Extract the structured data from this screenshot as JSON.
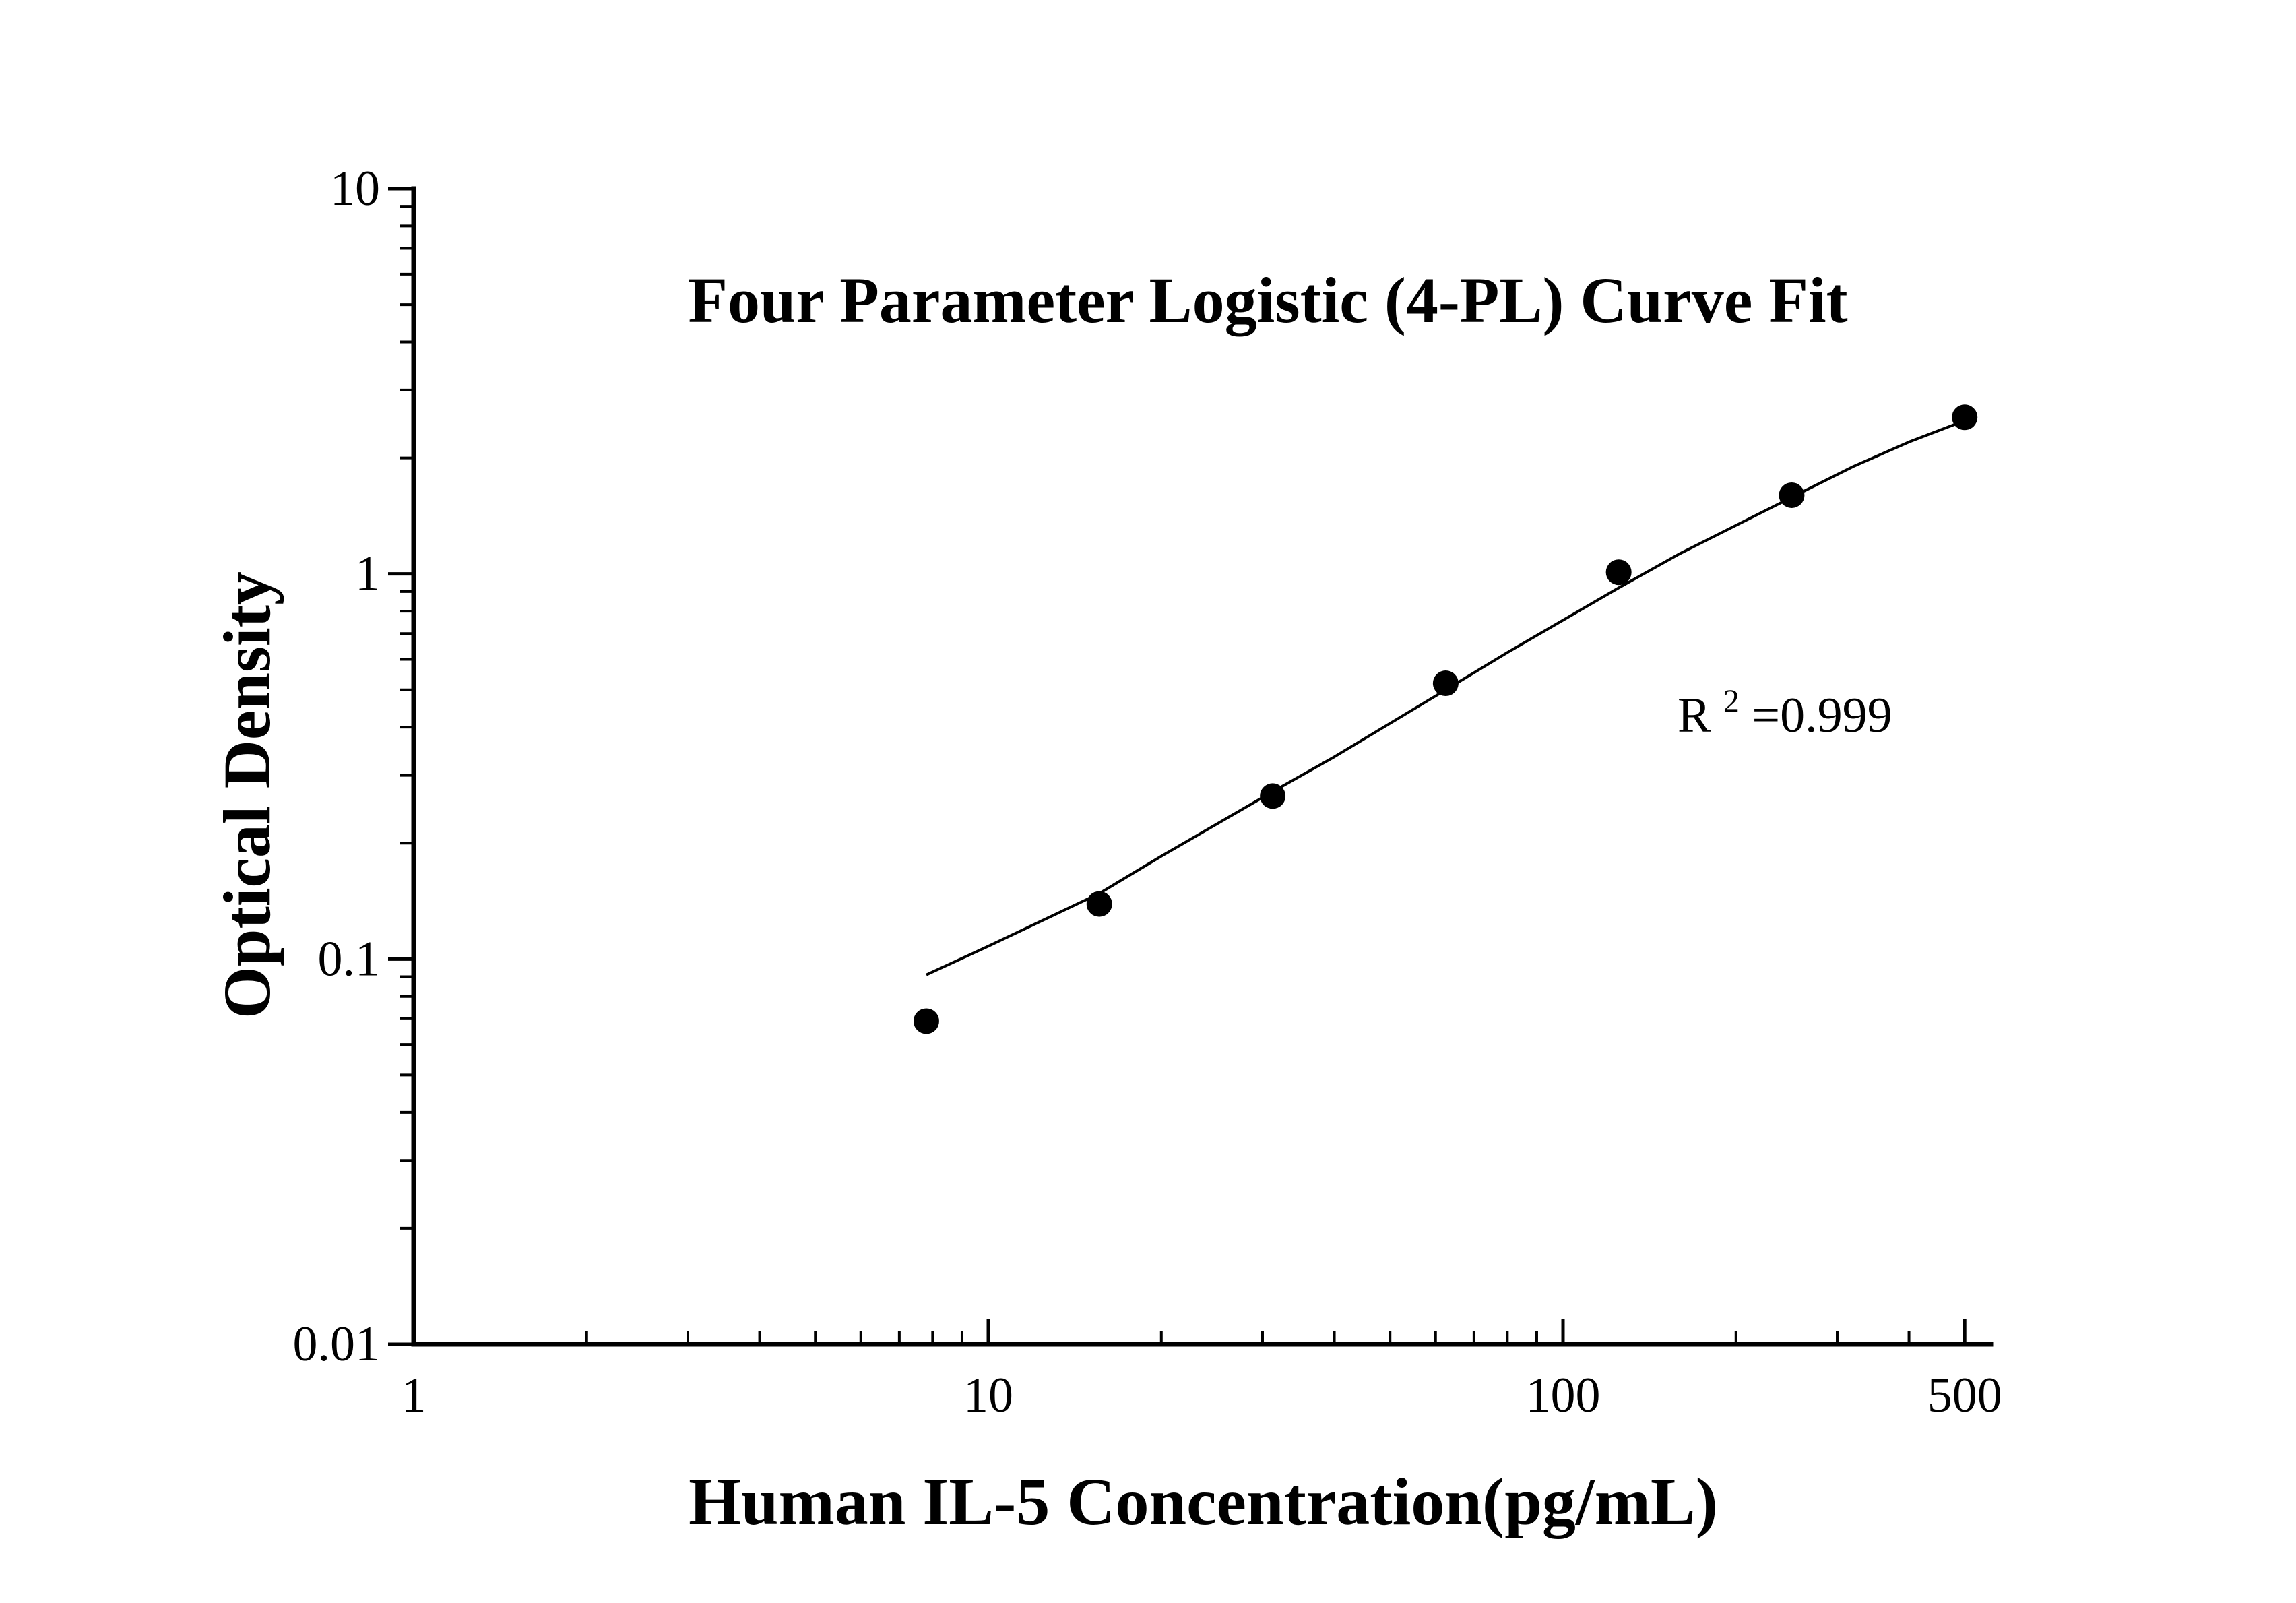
{
  "chart_data": {
    "type": "scatter",
    "title": "Four Parameter Logistic (4-PL) Curve Fit",
    "xlabel": "Human IL-5 Concentration(pg/mL)",
    "ylabel": "Optical Density",
    "xscale": "log",
    "yscale": "log",
    "xlim": [
      1,
      500
    ],
    "ylim": [
      0.01,
      10
    ],
    "xticks": [
      {
        "value": 1,
        "label": "1"
      },
      {
        "value": 10,
        "label": "10"
      },
      {
        "value": 100,
        "label": "100"
      },
      {
        "value": 500,
        "label": "500"
      }
    ],
    "yticks": [
      {
        "value": 0.01,
        "label": "0.01"
      },
      {
        "value": 0.1,
        "label": "0.1"
      },
      {
        "value": 1,
        "label": "1"
      },
      {
        "value": 10,
        "label": "10"
      }
    ],
    "points": {
      "x": [
        7.8,
        15.6,
        31.25,
        62.5,
        125,
        250,
        500
      ],
      "y": [
        0.069,
        0.139,
        0.265,
        0.52,
        1.01,
        1.6,
        2.55
      ]
    },
    "fit_curve": {
      "x": [
        7.8,
        10,
        15.6,
        20,
        31.25,
        40,
        62.5,
        80,
        125,
        160,
        250,
        320,
        400,
        500
      ],
      "y": [
        0.091,
        0.108,
        0.148,
        0.185,
        0.272,
        0.335,
        0.5,
        0.625,
        0.92,
        1.13,
        1.58,
        1.9,
        2.2,
        2.5
      ]
    },
    "annotation": {
      "r_base": "R",
      "r_sup": "2",
      "r_value": "=0.999"
    },
    "grid": false,
    "colors": {
      "axis": "#000000",
      "points": "#000000",
      "curve": "#000000"
    }
  }
}
